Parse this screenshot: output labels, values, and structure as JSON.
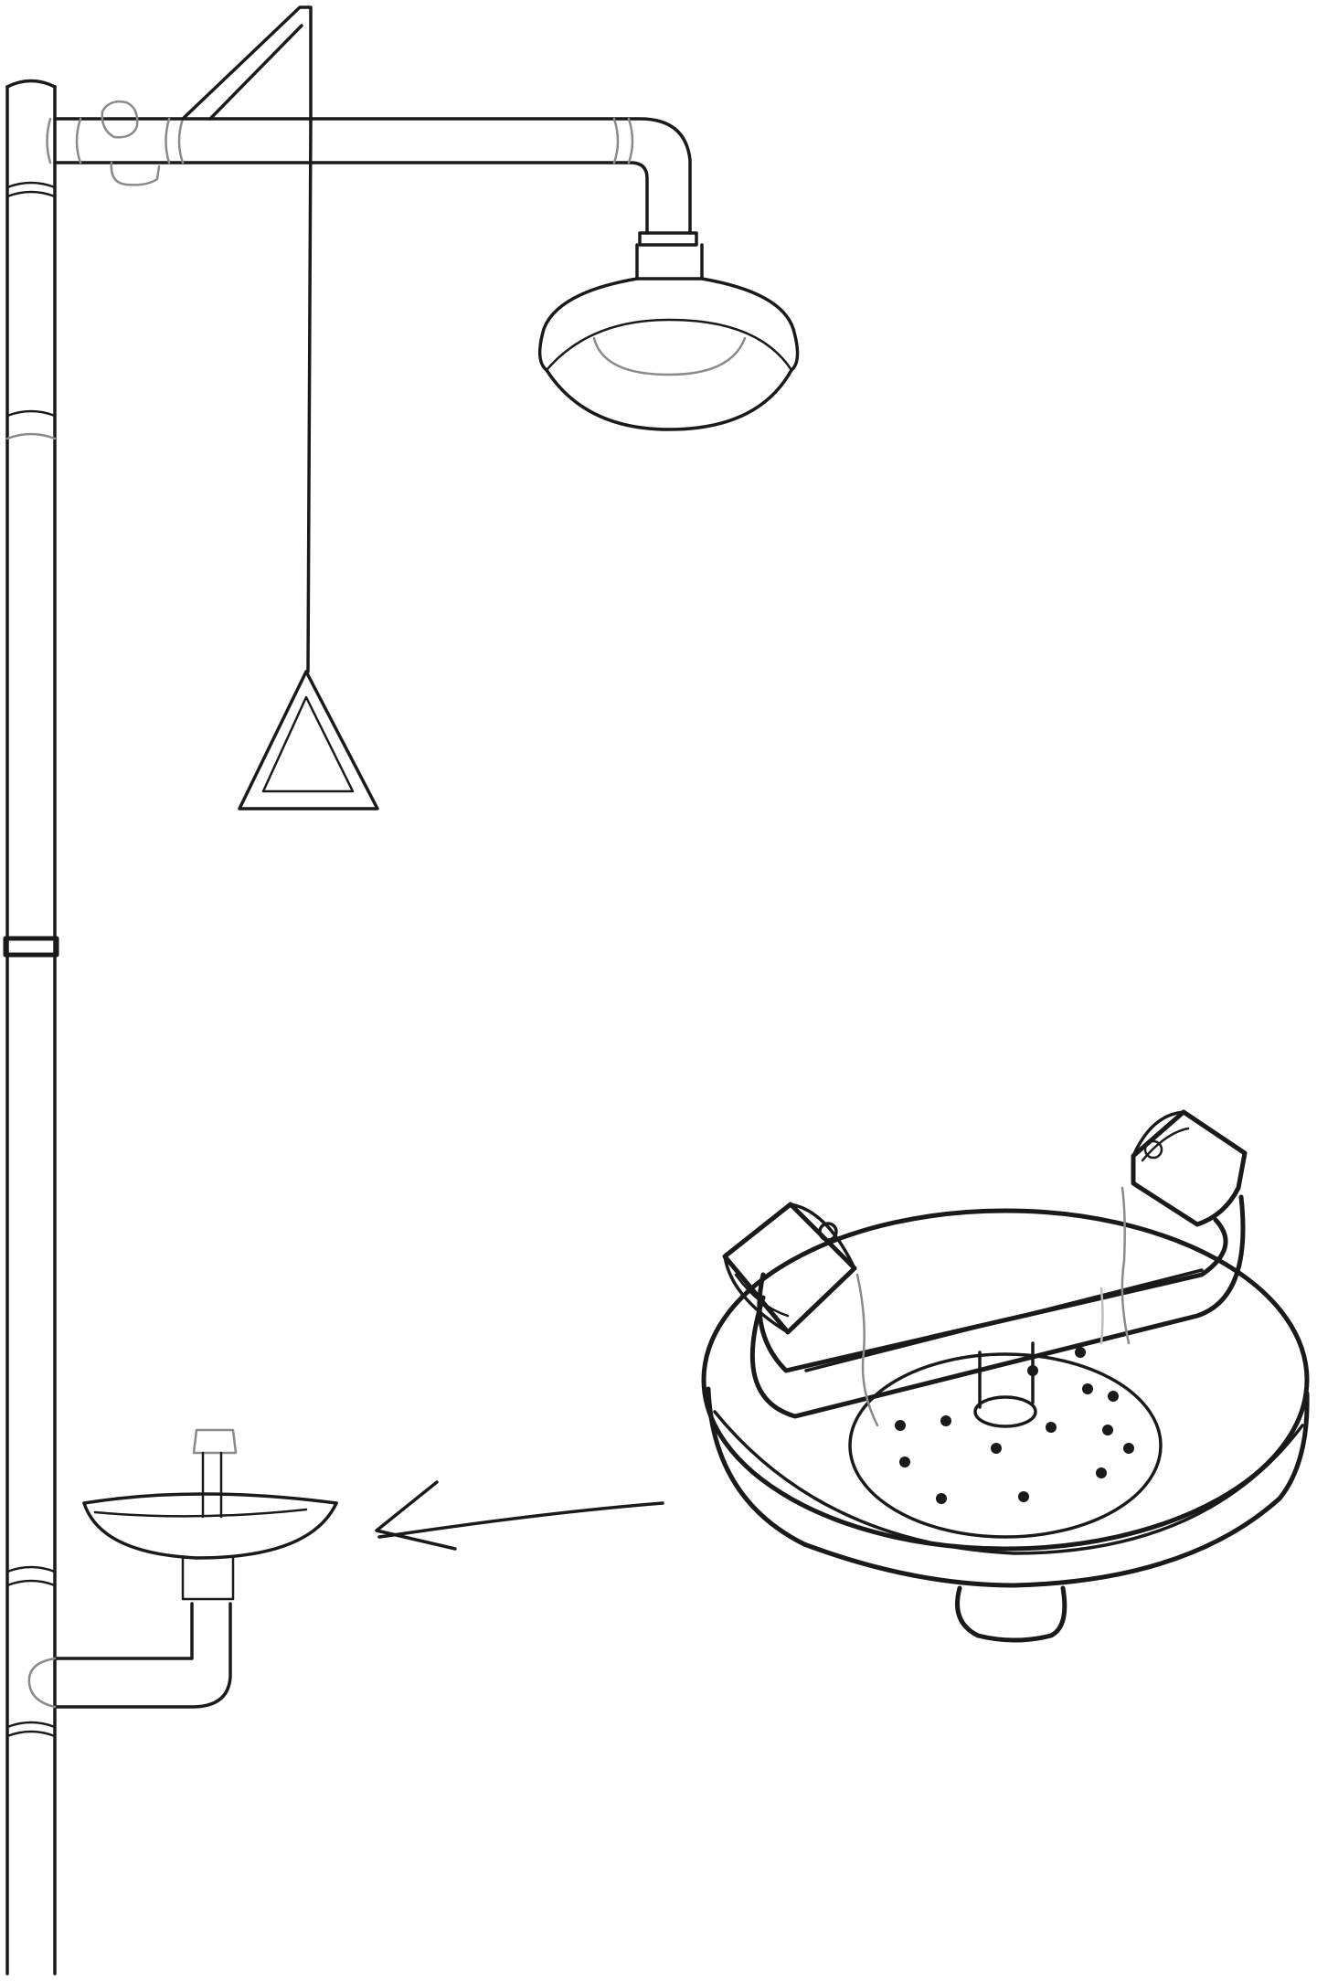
{
  "figure": {
    "description_visible_text": "",
    "colors": {
      "ink": "#1a1a1a",
      "shade": "#8a8a8a",
      "background": "#ffffff"
    },
    "parts": [
      "vertical-supply-pipe",
      "overhead-horizontal-arm",
      "shower-head",
      "pull-rod",
      "triangular-pull-handle",
      "eyewash-basin-small",
      "eyewash-supply-elbow",
      "detail-arrow",
      "eyewash-bowl-detail"
    ]
  }
}
